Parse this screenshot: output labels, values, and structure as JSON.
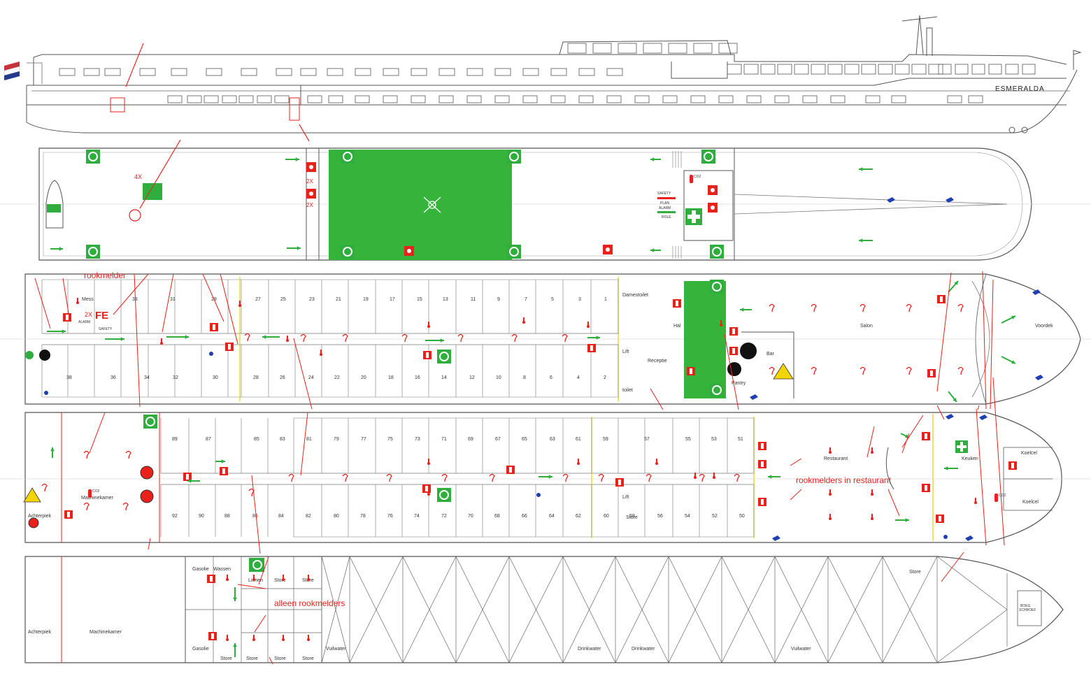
{
  "ship": {
    "name": "ESMERALDA"
  },
  "annotations": {
    "rookmelder": "rookmelder",
    "rookmelders_restaurant": "rookmelders in restaurant",
    "alleen_rookmelders": "alleen rookmelders",
    "fe_count": "2X",
    "fe_label": "FE",
    "count_4x": "4X",
    "count_2x_a": "2X",
    "count_2x_b": "2X"
  },
  "signs": {
    "safety_plan": [
      "SAFETY",
      "PLAN"
    ],
    "alarm_role": [
      "ALARM",
      "ROLE"
    ],
    "co2": "CO2"
  },
  "deck3": {
    "rooms": {
      "mess": "Mess",
      "damestoilet": "Damestoilet",
      "hal": "Hal",
      "lift": "Lift",
      "toilet": "toilet",
      "receptie": "Receptie",
      "pantry": "Pantry",
      "bar": "Bar",
      "salon": "Salon",
      "voordek": "Voordek"
    },
    "cabins_top": [
      "33",
      "31",
      "29",
      "27",
      "25",
      "23",
      "21",
      "19",
      "17",
      "15",
      "13",
      "11",
      "9",
      "7",
      "5",
      "3",
      "1"
    ],
    "cabins_bottom": [
      "38",
      "36",
      "34",
      "32",
      "30",
      "28",
      "26",
      "24",
      "22",
      "20",
      "18",
      "16",
      "14",
      "12",
      "10",
      "8",
      "6",
      "4",
      "2"
    ]
  },
  "deck2": {
    "rooms": {
      "machinekamer": "Machinekamer",
      "achterpiek": "Achterpiek",
      "lift": "Lift",
      "store": "Store",
      "restaurant": "Restaurant",
      "keuken": "Keuken",
      "koelcel_a": "Koelcel",
      "koelcel_b": "Koelcel"
    },
    "cabins_top": [
      "89",
      "87",
      "85",
      "83",
      "81",
      "79",
      "77",
      "75",
      "73",
      "71",
      "69",
      "67",
      "65",
      "63",
      "61",
      "59",
      "57",
      "55",
      "53",
      "51"
    ],
    "cabins_bottom": [
      "92",
      "90",
      "88",
      "86",
      "84",
      "82",
      "80",
      "78",
      "76",
      "74",
      "72",
      "70",
      "68",
      "66",
      "64",
      "62",
      "60",
      "58",
      "56",
      "54",
      "52",
      "50"
    ]
  },
  "deck1": {
    "rooms": {
      "achterpiek": "Achterpiek",
      "machinekamer": "Machinekamer",
      "gasolie_top": "Gasolie",
      "gasolie_bottom": "Gasolie",
      "wassen": "Wassen",
      "linnen": "Linnen",
      "store_1": "Store",
      "store_2": "Store",
      "store_3": "Store",
      "store_4": "Store",
      "store_5": "Store",
      "store_6": "Store",
      "store_7": "Store",
      "vuilwater_1": "Vuilwater",
      "drinkwater_1": "Drinkwater",
      "drinkwater_2": "Drinkwater",
      "vuilwater_2": "Vuilwater",
      "bodschroef": [
        "BOEG",
        "SCHROEF"
      ]
    }
  },
  "colors": {
    "safety_green": "#2fae3e",
    "deck_green": "#36b33a",
    "fire_red": "#e8211b",
    "line": "#555555",
    "flag_red": "#c8323c",
    "flag_blue": "#233b8c"
  }
}
